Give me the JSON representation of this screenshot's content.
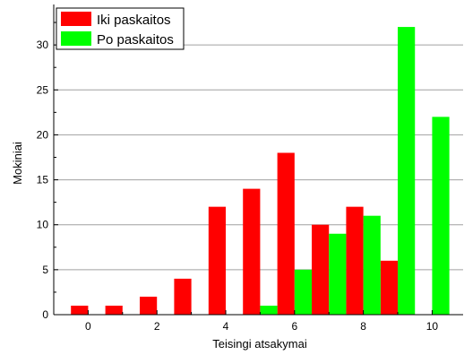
{
  "chart_data": {
    "type": "bar",
    "categories": [
      0,
      1,
      2,
      3,
      4,
      5,
      6,
      7,
      8,
      9,
      10
    ],
    "x_ticks": [
      0,
      2,
      4,
      6,
      8,
      10
    ],
    "xlim": [
      -1,
      10.9
    ],
    "y_ticks": [
      0,
      5,
      10,
      15,
      20,
      25,
      30
    ],
    "ylim": [
      0,
      34.5
    ],
    "xlabel": "Teisingi atsakymai",
    "ylabel": "Mokiniai",
    "grid": "horizontal",
    "legend_position": "top-left",
    "series": [
      {
        "name": "Iki paskaitos",
        "color": "#ff0000",
        "values": [
          1,
          1,
          2,
          4,
          12,
          14,
          18,
          10,
          12,
          6,
          0
        ]
      },
      {
        "name": "Po paskaitos",
        "color": "#00ff00",
        "values": [
          0,
          0,
          0,
          0,
          0,
          1,
          5,
          9,
          11,
          32,
          22
        ]
      }
    ]
  }
}
